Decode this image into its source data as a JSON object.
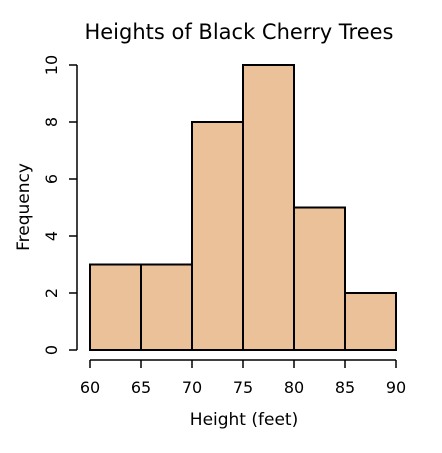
{
  "chart_data": {
    "type": "bar",
    "title": "Heights of Black Cherry Trees",
    "xlabel": "Height (feet)",
    "ylabel": "Frequency",
    "bins": [
      {
        "start": 60,
        "end": 65,
        "count": 3
      },
      {
        "start": 65,
        "end": 70,
        "count": 3
      },
      {
        "start": 70,
        "end": 75,
        "count": 8
      },
      {
        "start": 75,
        "end": 80,
        "count": 10
      },
      {
        "start": 80,
        "end": 85,
        "count": 5
      },
      {
        "start": 85,
        "end": 90,
        "count": 2
      }
    ],
    "x_ticks": [
      "60",
      "65",
      "70",
      "75",
      "80",
      "85",
      "90"
    ],
    "y_ticks": [
      "0",
      "2",
      "4",
      "6",
      "8",
      "10"
    ],
    "xlim": [
      60,
      90
    ],
    "ylim": [
      0,
      10
    ],
    "grid": false,
    "colors": {
      "bar_fill": "#EBC199",
      "bar_stroke": "#000000"
    }
  }
}
